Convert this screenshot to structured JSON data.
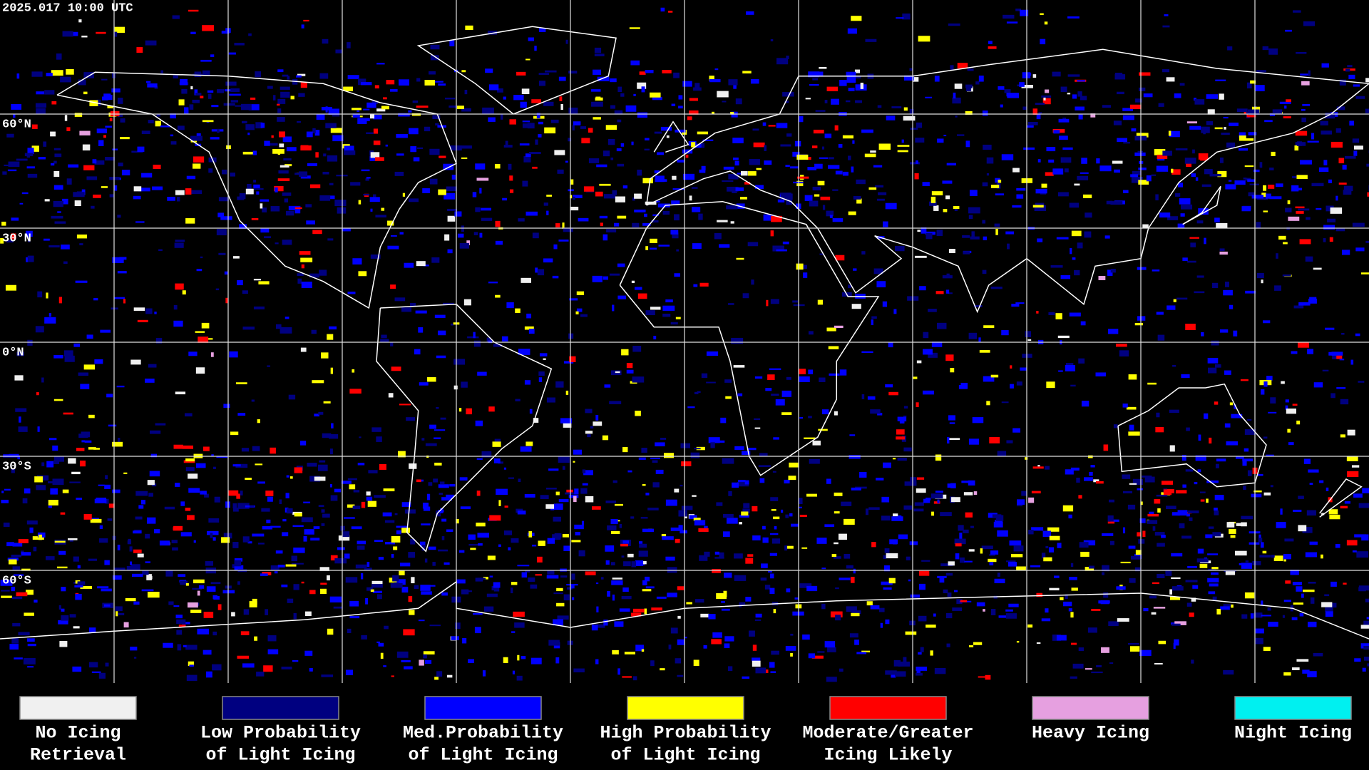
{
  "map": {
    "timestamp": "2025.017 10:00 UTC",
    "lat_labels": [
      "60°N",
      "30°N",
      "0°N",
      "30°S",
      "60°S"
    ]
  },
  "legend": [
    {
      "label": [
        "No Icing",
        "Retrieval"
      ],
      "color": "#f0f0f0"
    },
    {
      "label": [
        "Low Probability",
        "of Light Icing"
      ],
      "color": "#000080"
    },
    {
      "label": [
        "Med.Probability",
        "of Light Icing"
      ],
      "color": "#0000ff"
    },
    {
      "label": [
        "High Probability",
        "of Light Icing"
      ],
      "color": "#ffff00"
    },
    {
      "label": [
        "Moderate/Greater",
        "Icing Likely"
      ],
      "color": "#ff0000"
    },
    {
      "label": [
        "Heavy Icing"
      ],
      "color": "#e6a0e0"
    },
    {
      "label": [
        "Night Icing"
      ],
      "color": "#00f0f0"
    }
  ]
}
